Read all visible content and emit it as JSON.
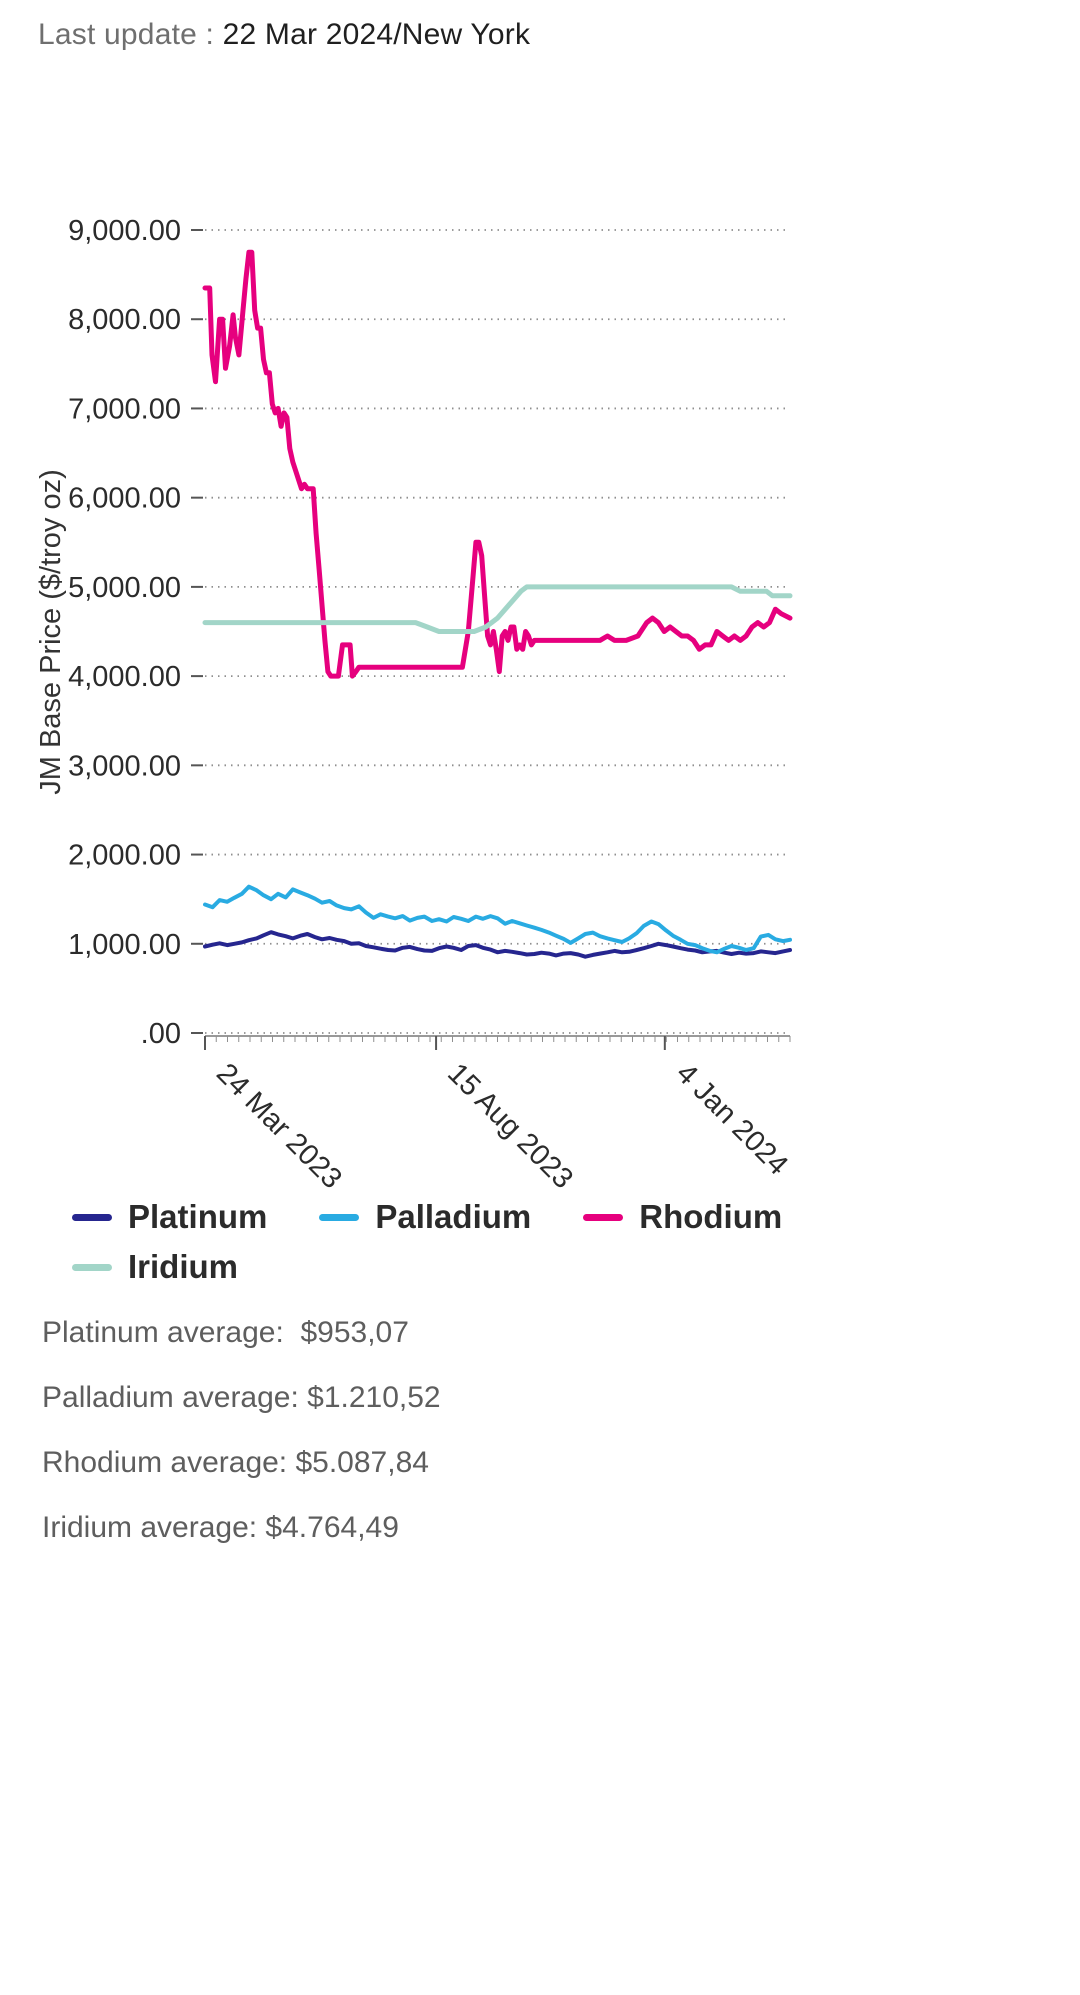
{
  "header": {
    "label": "Last update :",
    "value": "22 Mar 2024/New York"
  },
  "chart_data": {
    "type": "line",
    "title": "",
    "xlabel": "",
    "ylabel": "JM Base Price ($/troy oz)",
    "ylim": [
      0,
      9000
    ],
    "x_range": [
      "24 Mar 2023",
      "22 Mar 2024"
    ],
    "x_unit": "fraction of date range",
    "grid": "dotted horizontal gridlines",
    "legend_position": "bottom",
    "y_ticks": [
      {
        "value": 9000,
        "label": "9,000.00"
      },
      {
        "value": 8000,
        "label": "8,000.00"
      },
      {
        "value": 7000,
        "label": "7,000.00"
      },
      {
        "value": 6000,
        "label": "6,000.00"
      },
      {
        "value": 5000,
        "label": "5,000.00"
      },
      {
        "value": 4000,
        "label": "4,000.00"
      },
      {
        "value": 3000,
        "label": "3,000.00"
      },
      {
        "value": 2000,
        "label": "2,000.00"
      },
      {
        "value": 1000,
        "label": "1,000.00"
      },
      {
        "value": 0,
        "label": ".00"
      }
    ],
    "x_ticks": [
      {
        "t": 0.0,
        "label": "24 Mar 2023"
      },
      {
        "t": 0.395,
        "label": "15 Aug 2023"
      },
      {
        "t": 0.786,
        "label": "4 Jan 2024"
      }
    ],
    "series": [
      {
        "name": "Platinum",
        "color": "#26268f",
        "width": 4,
        "points": [
          [
            0.0,
            970
          ],
          [
            0.013,
            990
          ],
          [
            0.025,
            1005
          ],
          [
            0.038,
            985
          ],
          [
            0.05,
            1000
          ],
          [
            0.063,
            1015
          ],
          [
            0.075,
            1040
          ],
          [
            0.088,
            1060
          ],
          [
            0.1,
            1095
          ],
          [
            0.113,
            1130
          ],
          [
            0.125,
            1105
          ],
          [
            0.138,
            1085
          ],
          [
            0.15,
            1060
          ],
          [
            0.163,
            1090
          ],
          [
            0.175,
            1110
          ],
          [
            0.188,
            1075
          ],
          [
            0.2,
            1050
          ],
          [
            0.213,
            1065
          ],
          [
            0.225,
            1045
          ],
          [
            0.238,
            1030
          ],
          [
            0.25,
            1000
          ],
          [
            0.263,
            1005
          ],
          [
            0.275,
            975
          ],
          [
            0.288,
            960
          ],
          [
            0.3,
            945
          ],
          [
            0.313,
            930
          ],
          [
            0.325,
            925
          ],
          [
            0.338,
            955
          ],
          [
            0.35,
            965
          ],
          [
            0.363,
            940
          ],
          [
            0.375,
            925
          ],
          [
            0.388,
            920
          ],
          [
            0.4,
            950
          ],
          [
            0.413,
            970
          ],
          [
            0.425,
            955
          ],
          [
            0.438,
            930
          ],
          [
            0.45,
            975
          ],
          [
            0.463,
            985
          ],
          [
            0.475,
            955
          ],
          [
            0.488,
            935
          ],
          [
            0.5,
            905
          ],
          [
            0.513,
            920
          ],
          [
            0.525,
            910
          ],
          [
            0.538,
            895
          ],
          [
            0.55,
            880
          ],
          [
            0.563,
            885
          ],
          [
            0.575,
            900
          ],
          [
            0.588,
            890
          ],
          [
            0.6,
            870
          ],
          [
            0.613,
            890
          ],
          [
            0.625,
            895
          ],
          [
            0.638,
            880
          ],
          [
            0.65,
            855
          ],
          [
            0.663,
            875
          ],
          [
            0.675,
            890
          ],
          [
            0.688,
            905
          ],
          [
            0.7,
            920
          ],
          [
            0.713,
            905
          ],
          [
            0.725,
            910
          ],
          [
            0.738,
            930
          ],
          [
            0.75,
            950
          ],
          [
            0.763,
            975
          ],
          [
            0.775,
            1000
          ],
          [
            0.788,
            985
          ],
          [
            0.8,
            970
          ],
          [
            0.813,
            950
          ],
          [
            0.825,
            935
          ],
          [
            0.838,
            925
          ],
          [
            0.85,
            905
          ],
          [
            0.863,
            915
          ],
          [
            0.875,
            920
          ],
          [
            0.888,
            900
          ],
          [
            0.9,
            885
          ],
          [
            0.913,
            900
          ],
          [
            0.925,
            890
          ],
          [
            0.938,
            895
          ],
          [
            0.95,
            915
          ],
          [
            0.963,
            905
          ],
          [
            0.975,
            895
          ],
          [
            0.988,
            915
          ],
          [
            1.0,
            930
          ]
        ]
      },
      {
        "name": "Palladium",
        "color": "#29abe2",
        "width": 4,
        "points": [
          [
            0.0,
            1440
          ],
          [
            0.013,
            1410
          ],
          [
            0.025,
            1490
          ],
          [
            0.038,
            1470
          ],
          [
            0.05,
            1515
          ],
          [
            0.063,
            1560
          ],
          [
            0.075,
            1640
          ],
          [
            0.088,
            1600
          ],
          [
            0.1,
            1545
          ],
          [
            0.113,
            1500
          ],
          [
            0.125,
            1560
          ],
          [
            0.138,
            1520
          ],
          [
            0.15,
            1610
          ],
          [
            0.163,
            1575
          ],
          [
            0.175,
            1545
          ],
          [
            0.188,
            1505
          ],
          [
            0.2,
            1460
          ],
          [
            0.213,
            1480
          ],
          [
            0.225,
            1430
          ],
          [
            0.238,
            1400
          ],
          [
            0.25,
            1385
          ],
          [
            0.263,
            1420
          ],
          [
            0.275,
            1350
          ],
          [
            0.288,
            1290
          ],
          [
            0.3,
            1330
          ],
          [
            0.313,
            1305
          ],
          [
            0.325,
            1285
          ],
          [
            0.338,
            1310
          ],
          [
            0.35,
            1260
          ],
          [
            0.363,
            1290
          ],
          [
            0.375,
            1305
          ],
          [
            0.388,
            1255
          ],
          [
            0.4,
            1275
          ],
          [
            0.413,
            1250
          ],
          [
            0.425,
            1300
          ],
          [
            0.438,
            1280
          ],
          [
            0.45,
            1255
          ],
          [
            0.463,
            1305
          ],
          [
            0.475,
            1280
          ],
          [
            0.488,
            1310
          ],
          [
            0.5,
            1285
          ],
          [
            0.513,
            1225
          ],
          [
            0.525,
            1255
          ],
          [
            0.538,
            1230
          ],
          [
            0.55,
            1205
          ],
          [
            0.563,
            1180
          ],
          [
            0.575,
            1155
          ],
          [
            0.588,
            1125
          ],
          [
            0.6,
            1090
          ],
          [
            0.613,
            1055
          ],
          [
            0.625,
            1010
          ],
          [
            0.638,
            1060
          ],
          [
            0.65,
            1110
          ],
          [
            0.663,
            1125
          ],
          [
            0.675,
            1085
          ],
          [
            0.688,
            1060
          ],
          [
            0.7,
            1040
          ],
          [
            0.713,
            1020
          ],
          [
            0.725,
            1060
          ],
          [
            0.738,
            1120
          ],
          [
            0.75,
            1200
          ],
          [
            0.763,
            1250
          ],
          [
            0.775,
            1220
          ],
          [
            0.788,
            1150
          ],
          [
            0.8,
            1090
          ],
          [
            0.813,
            1045
          ],
          [
            0.825,
            1000
          ],
          [
            0.838,
            985
          ],
          [
            0.85,
            950
          ],
          [
            0.863,
            920
          ],
          [
            0.875,
            905
          ],
          [
            0.888,
            945
          ],
          [
            0.9,
            975
          ],
          [
            0.913,
            955
          ],
          [
            0.925,
            930
          ],
          [
            0.938,
            950
          ],
          [
            0.95,
            1080
          ],
          [
            0.963,
            1100
          ],
          [
            0.975,
            1050
          ],
          [
            0.988,
            1030
          ],
          [
            1.0,
            1045
          ]
        ]
      },
      {
        "name": "Rhodium",
        "color": "#e6007e",
        "width": 5,
        "points": [
          [
            0.0,
            8350
          ],
          [
            0.008,
            8350
          ],
          [
            0.012,
            7600
          ],
          [
            0.018,
            7300
          ],
          [
            0.025,
            8000
          ],
          [
            0.03,
            8000
          ],
          [
            0.035,
            7450
          ],
          [
            0.042,
            7700
          ],
          [
            0.048,
            8050
          ],
          [
            0.052,
            7800
          ],
          [
            0.058,
            7600
          ],
          [
            0.065,
            8100
          ],
          [
            0.07,
            8450
          ],
          [
            0.075,
            8750
          ],
          [
            0.08,
            8750
          ],
          [
            0.085,
            8100
          ],
          [
            0.09,
            7900
          ],
          [
            0.095,
            7900
          ],
          [
            0.1,
            7550
          ],
          [
            0.105,
            7400
          ],
          [
            0.11,
            7400
          ],
          [
            0.115,
            7050
          ],
          [
            0.12,
            6950
          ],
          [
            0.125,
            7000
          ],
          [
            0.13,
            6800
          ],
          [
            0.135,
            6950
          ],
          [
            0.14,
            6900
          ],
          [
            0.145,
            6550
          ],
          [
            0.15,
            6400
          ],
          [
            0.155,
            6300
          ],
          [
            0.16,
            6200
          ],
          [
            0.165,
            6100
          ],
          [
            0.17,
            6150
          ],
          [
            0.175,
            6100
          ],
          [
            0.185,
            6100
          ],
          [
            0.19,
            5600
          ],
          [
            0.195,
            5200
          ],
          [
            0.2,
            4800
          ],
          [
            0.205,
            4400
          ],
          [
            0.21,
            4050
          ],
          [
            0.215,
            4000
          ],
          [
            0.228,
            4000
          ],
          [
            0.235,
            4350
          ],
          [
            0.248,
            4350
          ],
          [
            0.252,
            4000
          ],
          [
            0.258,
            4050
          ],
          [
            0.263,
            4100
          ],
          [
            0.3,
            4100
          ],
          [
            0.35,
            4100
          ],
          [
            0.4,
            4100
          ],
          [
            0.43,
            4100
          ],
          [
            0.44,
            4100
          ],
          [
            0.45,
            4500
          ],
          [
            0.458,
            5100
          ],
          [
            0.463,
            5500
          ],
          [
            0.468,
            5500
          ],
          [
            0.473,
            5350
          ],
          [
            0.478,
            4900
          ],
          [
            0.483,
            4450
          ],
          [
            0.488,
            4350
          ],
          [
            0.493,
            4500
          ],
          [
            0.498,
            4300
          ],
          [
            0.503,
            4050
          ],
          [
            0.508,
            4450
          ],
          [
            0.513,
            4500
          ],
          [
            0.518,
            4400
          ],
          [
            0.523,
            4550
          ],
          [
            0.528,
            4550
          ],
          [
            0.533,
            4300
          ],
          [
            0.538,
            4350
          ],
          [
            0.543,
            4300
          ],
          [
            0.548,
            4500
          ],
          [
            0.553,
            4450
          ],
          [
            0.558,
            4350
          ],
          [
            0.563,
            4400
          ],
          [
            0.6,
            4400
          ],
          [
            0.65,
            4400
          ],
          [
            0.675,
            4400
          ],
          [
            0.688,
            4450
          ],
          [
            0.7,
            4400
          ],
          [
            0.72,
            4400
          ],
          [
            0.74,
            4450
          ],
          [
            0.755,
            4600
          ],
          [
            0.765,
            4650
          ],
          [
            0.775,
            4600
          ],
          [
            0.785,
            4500
          ],
          [
            0.795,
            4550
          ],
          [
            0.805,
            4500
          ],
          [
            0.815,
            4450
          ],
          [
            0.825,
            4450
          ],
          [
            0.835,
            4400
          ],
          [
            0.845,
            4300
          ],
          [
            0.855,
            4350
          ],
          [
            0.865,
            4350
          ],
          [
            0.875,
            4500
          ],
          [
            0.885,
            4450
          ],
          [
            0.895,
            4400
          ],
          [
            0.905,
            4450
          ],
          [
            0.915,
            4400
          ],
          [
            0.925,
            4450
          ],
          [
            0.935,
            4550
          ],
          [
            0.945,
            4600
          ],
          [
            0.955,
            4550
          ],
          [
            0.965,
            4600
          ],
          [
            0.975,
            4750
          ],
          [
            0.985,
            4700
          ],
          [
            1.0,
            4650
          ]
        ]
      },
      {
        "name": "Iridium",
        "color": "#a2d5c8",
        "width": 5,
        "points": [
          [
            0.0,
            4600
          ],
          [
            0.1,
            4600
          ],
          [
            0.2,
            4600
          ],
          [
            0.3,
            4600
          ],
          [
            0.36,
            4600
          ],
          [
            0.38,
            4550
          ],
          [
            0.4,
            4500
          ],
          [
            0.43,
            4500
          ],
          [
            0.46,
            4500
          ],
          [
            0.48,
            4550
          ],
          [
            0.5,
            4650
          ],
          [
            0.52,
            4800
          ],
          [
            0.54,
            4950
          ],
          [
            0.55,
            5000
          ],
          [
            0.6,
            5000
          ],
          [
            0.7,
            5000
          ],
          [
            0.8,
            5000
          ],
          [
            0.9,
            5000
          ],
          [
            0.915,
            4950
          ],
          [
            0.94,
            4950
          ],
          [
            0.96,
            4950
          ],
          [
            0.97,
            4900
          ],
          [
            1.0,
            4900
          ]
        ]
      }
    ]
  },
  "averages": [
    {
      "text": "Platinum average:  $953,07"
    },
    {
      "text": "Palladium average: $1.210,52"
    },
    {
      "text": "Rhodium average: $5.087,84"
    },
    {
      "text": "Iridium average: $4.764,49"
    }
  ]
}
